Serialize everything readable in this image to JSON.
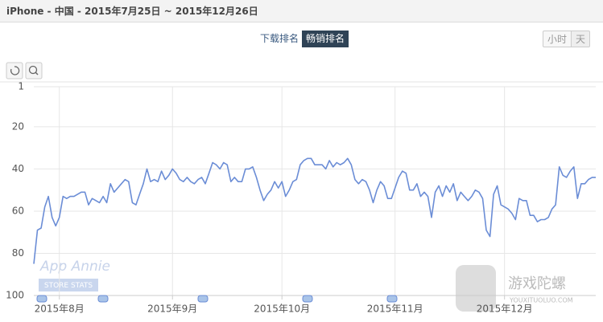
{
  "header": {
    "title": "iPhone - 中国 - 2015年7月25日 ~ 2015年12月26日"
  },
  "controls": {
    "metric_tabs": [
      "下载排名",
      "畅销排名"
    ],
    "interval_tabs": [
      "小时",
      "天"
    ]
  },
  "watermarks": [
    "App Annie",
    "STORE STATS",
    "游戏陀螺",
    "YOUXITUOLUO.COM"
  ],
  "chart_data": {
    "type": "line",
    "color": "#6b8dd6",
    "grid": true,
    "xlim": [
      "2015-07-25",
      "2015-12-26"
    ],
    "xticks": [
      {
        "value": "2015-08-01",
        "label": "2015年8月"
      },
      {
        "value": "2015-09-01",
        "label": "2015年9月"
      },
      {
        "value": "2015-10-01",
        "label": "2015年10月"
      },
      {
        "value": "2015-11-01",
        "label": "2015年11月"
      },
      {
        "value": "2015-12-01",
        "label": "2015年12月"
      }
    ],
    "ylim": [
      100,
      1
    ],
    "yticks": [
      1,
      20,
      40,
      60,
      80,
      100
    ],
    "x": [
      "2015-07-25",
      "2015-07-26",
      "2015-07-27",
      "2015-07-28",
      "2015-07-29",
      "2015-07-30",
      "2015-07-31",
      "2015-08-01",
      "2015-08-02",
      "2015-08-03",
      "2015-08-04",
      "2015-08-05",
      "2015-08-06",
      "2015-08-07",
      "2015-08-08",
      "2015-08-09",
      "2015-08-10",
      "2015-08-11",
      "2015-08-12",
      "2015-08-13",
      "2015-08-14",
      "2015-08-15",
      "2015-08-16",
      "2015-08-17",
      "2015-08-18",
      "2015-08-19",
      "2015-08-20",
      "2015-08-21",
      "2015-08-22",
      "2015-08-23",
      "2015-08-24",
      "2015-08-25",
      "2015-08-26",
      "2015-08-27",
      "2015-08-28",
      "2015-08-29",
      "2015-08-30",
      "2015-08-31",
      "2015-09-01",
      "2015-09-02",
      "2015-09-03",
      "2015-09-04",
      "2015-09-05",
      "2015-09-06",
      "2015-09-07",
      "2015-09-08",
      "2015-09-09",
      "2015-09-10",
      "2015-09-11",
      "2015-09-12",
      "2015-09-13",
      "2015-09-14",
      "2015-09-15",
      "2015-09-16",
      "2015-09-17",
      "2015-09-18",
      "2015-09-19",
      "2015-09-20",
      "2015-09-21",
      "2015-09-22",
      "2015-09-23",
      "2015-09-24",
      "2015-09-25",
      "2015-09-26",
      "2015-09-27",
      "2015-09-28",
      "2015-09-29",
      "2015-09-30",
      "2015-10-01",
      "2015-10-02",
      "2015-10-03",
      "2015-10-04",
      "2015-10-05",
      "2015-10-06",
      "2015-10-07",
      "2015-10-08",
      "2015-10-09",
      "2015-10-10",
      "2015-10-11",
      "2015-10-12",
      "2015-10-13",
      "2015-10-14",
      "2015-10-15",
      "2015-10-16",
      "2015-10-17",
      "2015-10-18",
      "2015-10-19",
      "2015-10-20",
      "2015-10-21",
      "2015-10-22",
      "2015-10-23",
      "2015-10-24",
      "2015-10-25",
      "2015-10-26",
      "2015-10-27",
      "2015-10-28",
      "2015-10-29",
      "2015-10-30",
      "2015-10-31",
      "2015-11-01",
      "2015-11-02",
      "2015-11-03",
      "2015-11-04",
      "2015-11-05",
      "2015-11-06",
      "2015-11-07",
      "2015-11-08",
      "2015-11-09",
      "2015-11-10",
      "2015-11-11",
      "2015-11-12",
      "2015-11-13",
      "2015-11-14",
      "2015-11-15",
      "2015-11-16",
      "2015-11-17",
      "2015-11-18",
      "2015-11-19",
      "2015-11-20",
      "2015-11-21",
      "2015-11-22",
      "2015-11-23",
      "2015-11-24",
      "2015-11-25",
      "2015-11-26",
      "2015-11-27",
      "2015-11-28",
      "2015-11-29",
      "2015-11-30",
      "2015-12-01",
      "2015-12-02",
      "2015-12-03",
      "2015-12-04",
      "2015-12-05",
      "2015-12-06",
      "2015-12-07",
      "2015-12-08",
      "2015-12-09",
      "2015-12-10",
      "2015-12-11",
      "2015-12-12",
      "2015-12-13",
      "2015-12-14",
      "2015-12-15",
      "2015-12-16",
      "2015-12-17",
      "2015-12-18",
      "2015-12-19",
      "2015-12-20",
      "2015-12-21",
      "2015-12-22",
      "2015-12-23",
      "2015-12-24",
      "2015-12-25",
      "2015-12-26"
    ],
    "values": [
      85,
      69,
      68,
      58,
      53,
      63,
      67,
      63,
      53,
      54,
      53,
      53,
      52,
      51,
      51,
      57,
      54,
      55,
      56,
      53,
      56,
      47,
      51,
      49,
      47,
      45,
      46,
      56,
      57,
      52,
      47,
      40,
      46,
      45,
      46,
      41,
      45,
      43,
      40,
      42,
      45,
      46,
      44,
      46,
      47,
      45,
      44,
      47,
      42,
      37,
      38,
      40,
      37,
      38,
      46,
      44,
      46,
      46,
      40,
      40,
      39,
      44,
      50,
      55,
      52,
      50,
      46,
      49,
      46,
      53,
      50,
      46,
      45,
      38,
      36,
      35,
      35,
      38,
      38,
      38,
      40,
      36,
      39,
      37,
      38,
      37,
      35,
      38,
      45,
      47,
      45,
      46,
      50,
      56,
      50,
      46,
      48,
      54,
      54,
      49,
      44,
      41,
      42,
      50,
      50,
      47,
      53,
      51,
      53,
      63,
      51,
      48,
      53,
      48,
      51,
      47,
      55,
      51,
      53,
      55,
      53,
      50,
      51,
      54,
      69,
      72,
      52,
      48,
      57,
      58,
      59,
      61,
      64,
      54,
      55,
      55,
      62,
      62,
      65,
      64,
      64,
      63,
      59,
      57,
      39,
      43,
      44,
      41,
      39,
      54,
      47,
      47,
      45,
      44,
      44
    ]
  }
}
